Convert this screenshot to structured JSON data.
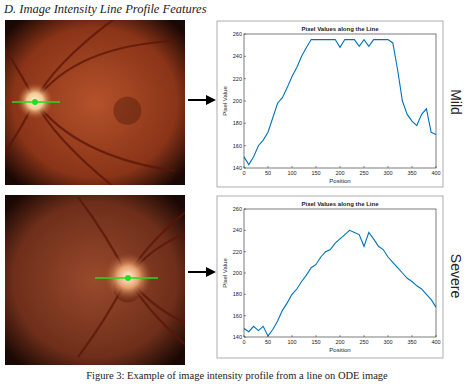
{
  "heading": "D. Image Intensity Line Profile Features",
  "caption": "Figure 3: Example of image intensity profile from a line on ODE image",
  "chart_data": [
    {
      "type": "line",
      "title": "Pixel Values along the Line",
      "x_label": "Position",
      "y_label": "Pixel Value",
      "annotation": "Mild",
      "x": [
        0,
        10,
        20,
        30,
        40,
        50,
        60,
        70,
        80,
        90,
        100,
        110,
        120,
        130,
        140,
        150,
        160,
        170,
        180,
        190,
        200,
        210,
        220,
        230,
        240,
        250,
        260,
        270,
        280,
        290,
        300,
        310,
        320,
        330,
        340,
        350,
        360,
        370,
        380,
        390,
        400
      ],
      "values": [
        150,
        143,
        150,
        160,
        165,
        172,
        185,
        198,
        203,
        212,
        222,
        230,
        240,
        248,
        255,
        255,
        255,
        255,
        255,
        255,
        248,
        255,
        255,
        255,
        249,
        255,
        249,
        255,
        255,
        255,
        255,
        252,
        228,
        200,
        188,
        182,
        178,
        188,
        193,
        172,
        170
      ],
      "color": "#0072bd",
      "xlim": [
        0,
        400
      ],
      "ylim": [
        140,
        260
      ],
      "xticks": [
        0,
        50,
        100,
        150,
        200,
        250,
        300,
        350,
        400
      ],
      "yticks": [
        140,
        160,
        180,
        200,
        220,
        240,
        260
      ],
      "grid": false
    },
    {
      "type": "line",
      "title": "Pixel Values along the Line",
      "x_label": "Position",
      "y_label": "Pixel Value",
      "annotation": "Severe",
      "x": [
        0,
        10,
        20,
        30,
        40,
        50,
        60,
        70,
        80,
        90,
        100,
        110,
        120,
        130,
        140,
        150,
        160,
        170,
        180,
        190,
        200,
        210,
        220,
        230,
        240,
        250,
        260,
        270,
        280,
        290,
        300,
        310,
        320,
        330,
        340,
        350,
        360,
        370,
        380,
        390,
        400
      ],
      "values": [
        148,
        145,
        150,
        146,
        150,
        141,
        147,
        155,
        165,
        172,
        180,
        185,
        192,
        198,
        205,
        208,
        215,
        220,
        222,
        228,
        232,
        236,
        240,
        238,
        236,
        225,
        238,
        232,
        225,
        222,
        215,
        210,
        205,
        200,
        195,
        192,
        188,
        185,
        180,
        175,
        168
      ],
      "color": "#0072bd",
      "xlim": [
        0,
        400
      ],
      "ylim": [
        140,
        260
      ],
      "xticks": [
        0,
        50,
        100,
        150,
        200,
        250,
        300,
        350,
        400
      ],
      "yticks": [
        140,
        160,
        180,
        200,
        220,
        240,
        260
      ],
      "grid": false
    }
  ]
}
